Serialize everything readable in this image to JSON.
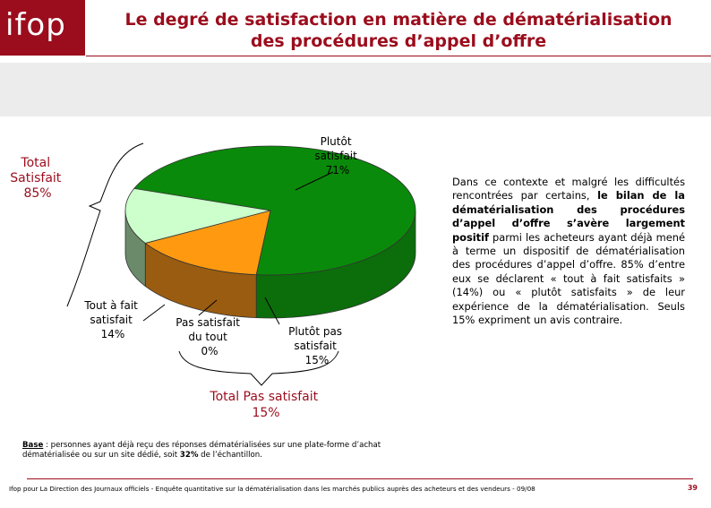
{
  "logo": {
    "text": "ifop"
  },
  "title": {
    "line1": "Le degré de satisfaction en matière de dématérialisation",
    "line2": "des procédures d’appel d’offre"
  },
  "chart_data": {
    "type": "pie",
    "slices": [
      {
        "name": "Plutôt satisfait",
        "value": 71,
        "label_lines": [
          "Plutôt",
          "satisfait",
          "71%"
        ],
        "color": "#0a8a0a",
        "side_color": "#0b6e0b"
      },
      {
        "name": "Plutôt pas satisfait",
        "value": 15,
        "label_lines": [
          "Plutôt pas",
          "satisfait",
          "15%"
        ],
        "color": "#ff9a10",
        "side_color": "#9a5c10"
      },
      {
        "name": "Pas satisfait du tout",
        "value": 0,
        "label_lines": [
          "Pas satisfait",
          "du tout",
          "0%"
        ],
        "color": "#6a7a3a",
        "side_color": "#5a6a30"
      },
      {
        "name": "Tout à fait satisfait",
        "value": 14,
        "label_lines": [
          "Tout à fait",
          "satisfait",
          "14%"
        ],
        "color": "#ccffcc",
        "side_color": "#6a8a6a"
      }
    ],
    "total_satisfait": {
      "lines": [
        "Total",
        "Satisfait",
        "85%"
      ]
    },
    "total_pas_satisfait": {
      "lines": [
        "Total Pas satisfait",
        "15%"
      ]
    },
    "colors": {
      "accent": "#9b0d1d"
    }
  },
  "paragraph": {
    "part1": "Dans ce contexte et malgré les difficultés rencontrées par certains, ",
    "bold": "le bilan de la dématérialisation des procédures d’appel d’offre s’avère largement positif",
    "part2": " parmi les acheteurs ayant déjà mené à terme un dispositif de dématérialisation des procédures d’appel d’offre. 85% d’entre eux se déclarent « tout à fait satisfaits » (14%) ou « plutôt satisfaits » de leur expérience de la dématérialisation. Seuls 15% expriment un avis contraire."
  },
  "base": {
    "label": "Base",
    "text": " : personnes ayant déjà reçu des réponses dématérialisées sur une plate-forme d’achat dématérialisée ou sur un site dédié, soit ",
    "bold": "32%",
    "text2": " de l’échantillon."
  },
  "footer": {
    "text": "Ifop pour La Direction des Journaux officiels - Enquête quantitative sur la dématérialisation dans les marchés publics auprès des acheteurs et des vendeurs - 09/08",
    "page": "39"
  }
}
